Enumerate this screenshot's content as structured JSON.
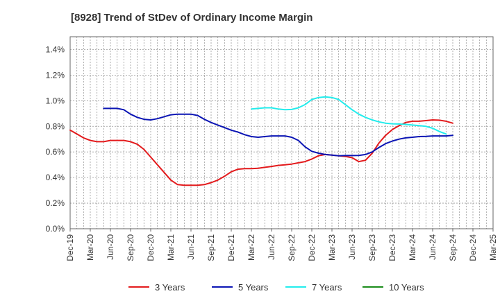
{
  "chart_data": {
    "type": "line",
    "title": "[8928]  Trend of StDev of Ordinary Income Margin",
    "xlabel": "",
    "ylabel": "",
    "x_ticks": [
      "Dec-19",
      "Mar-20",
      "Jun-20",
      "Sep-20",
      "Dec-20",
      "Mar-21",
      "Jun-21",
      "Sep-21",
      "Dec-21",
      "Mar-22",
      "Jun-22",
      "Sep-22",
      "Dec-22",
      "Mar-23",
      "Jun-23",
      "Sep-23",
      "Dec-23",
      "Mar-24",
      "Jun-24",
      "Sep-24",
      "Dec-24",
      "Mar-25"
    ],
    "y_ticks": [
      "0.0%",
      "0.2%",
      "0.4%",
      "0.6%",
      "0.8%",
      "1.0%",
      "1.2%",
      "1.4%"
    ],
    "ylim": [
      0,
      1.5
    ],
    "grid": true,
    "legend_position": "bottom",
    "series": [
      {
        "name": "3 Years",
        "color": "#e31a1c",
        "points": [
          [
            0,
            0.77
          ],
          [
            1,
            0.74
          ],
          [
            2,
            0.71
          ],
          [
            3,
            0.69
          ],
          [
            4,
            0.68
          ],
          [
            5,
            0.68
          ],
          [
            6,
            0.69
          ],
          [
            7,
            0.69
          ],
          [
            8,
            0.69
          ],
          [
            9,
            0.68
          ],
          [
            10,
            0.66
          ],
          [
            11,
            0.62
          ],
          [
            12,
            0.56
          ],
          [
            13,
            0.5
          ],
          [
            14,
            0.44
          ],
          [
            15,
            0.38
          ],
          [
            16,
            0.345
          ],
          [
            17,
            0.34
          ],
          [
            18,
            0.34
          ],
          [
            19,
            0.34
          ],
          [
            20,
            0.345
          ],
          [
            21,
            0.36
          ],
          [
            22,
            0.38
          ],
          [
            23,
            0.41
          ],
          [
            24,
            0.445
          ],
          [
            25,
            0.465
          ],
          [
            26,
            0.47
          ],
          [
            27,
            0.47
          ],
          [
            28,
            0.473
          ],
          [
            29,
            0.48
          ],
          [
            30,
            0.487
          ],
          [
            31,
            0.495
          ],
          [
            32,
            0.5
          ],
          [
            33,
            0.505
          ],
          [
            34,
            0.515
          ],
          [
            35,
            0.525
          ],
          [
            36,
            0.545
          ],
          [
            37,
            0.57
          ],
          [
            38,
            0.58
          ],
          [
            39,
            0.575
          ],
          [
            40,
            0.57
          ],
          [
            41,
            0.565
          ],
          [
            42,
            0.555
          ],
          [
            43,
            0.525
          ],
          [
            44,
            0.535
          ],
          [
            45,
            0.59
          ],
          [
            46,
            0.67
          ],
          [
            47,
            0.73
          ],
          [
            48,
            0.775
          ],
          [
            49,
            0.805
          ],
          [
            50,
            0.83
          ],
          [
            51,
            0.84
          ],
          [
            52,
            0.84
          ],
          [
            53,
            0.845
          ],
          [
            54,
            0.85
          ],
          [
            55,
            0.848
          ],
          [
            56,
            0.84
          ],
          [
            57,
            0.825
          ]
        ]
      },
      {
        "name": "5 Years",
        "color": "#0a14b4",
        "points": [
          [
            5,
            0.94
          ],
          [
            6,
            0.94
          ],
          [
            7,
            0.94
          ],
          [
            8,
            0.93
          ],
          [
            9,
            0.895
          ],
          [
            10,
            0.87
          ],
          [
            11,
            0.855
          ],
          [
            12,
            0.85
          ],
          [
            13,
            0.86
          ],
          [
            14,
            0.875
          ],
          [
            15,
            0.89
          ],
          [
            16,
            0.895
          ],
          [
            17,
            0.895
          ],
          [
            18,
            0.895
          ],
          [
            19,
            0.885
          ],
          [
            20,
            0.855
          ],
          [
            21,
            0.83
          ],
          [
            22,
            0.81
          ],
          [
            23,
            0.79
          ],
          [
            24,
            0.77
          ],
          [
            25,
            0.755
          ],
          [
            26,
            0.735
          ],
          [
            27,
            0.72
          ],
          [
            28,
            0.715
          ],
          [
            29,
            0.72
          ],
          [
            30,
            0.725
          ],
          [
            31,
            0.725
          ],
          [
            32,
            0.725
          ],
          [
            33,
            0.715
          ],
          [
            34,
            0.69
          ],
          [
            35,
            0.64
          ],
          [
            36,
            0.605
          ],
          [
            37,
            0.59
          ],
          [
            38,
            0.58
          ],
          [
            39,
            0.575
          ],
          [
            40,
            0.57
          ],
          [
            41,
            0.572
          ],
          [
            42,
            0.572
          ],
          [
            43,
            0.573
          ],
          [
            44,
            0.58
          ],
          [
            45,
            0.6
          ],
          [
            46,
            0.635
          ],
          [
            47,
            0.665
          ],
          [
            48,
            0.685
          ],
          [
            49,
            0.7
          ],
          [
            50,
            0.71
          ],
          [
            51,
            0.715
          ],
          [
            52,
            0.72
          ],
          [
            53,
            0.722
          ],
          [
            54,
            0.725
          ],
          [
            55,
            0.725
          ],
          [
            56,
            0.725
          ],
          [
            57,
            0.73
          ]
        ]
      },
      {
        "name": "7 Years",
        "color": "#22ecec",
        "points": [
          [
            27,
            0.935
          ],
          [
            28,
            0.94
          ],
          [
            29,
            0.945
          ],
          [
            30,
            0.945
          ],
          [
            31,
            0.935
          ],
          [
            32,
            0.93
          ],
          [
            33,
            0.932
          ],
          [
            34,
            0.945
          ],
          [
            35,
            0.97
          ],
          [
            36,
            1.01
          ],
          [
            37,
            1.025
          ],
          [
            38,
            1.03
          ],
          [
            39,
            1.025
          ],
          [
            40,
            1.01
          ],
          [
            41,
            0.97
          ],
          [
            42,
            0.93
          ],
          [
            43,
            0.895
          ],
          [
            44,
            0.87
          ],
          [
            45,
            0.85
          ],
          [
            46,
            0.835
          ],
          [
            47,
            0.825
          ],
          [
            48,
            0.82
          ],
          [
            49,
            0.818
          ],
          [
            50,
            0.815
          ],
          [
            51,
            0.81
          ],
          [
            52,
            0.805
          ],
          [
            53,
            0.8
          ],
          [
            54,
            0.785
          ],
          [
            55,
            0.76
          ],
          [
            56,
            0.74
          ]
        ]
      },
      {
        "name": "10 Years",
        "color": "#1a8c1a",
        "points": []
      }
    ]
  }
}
